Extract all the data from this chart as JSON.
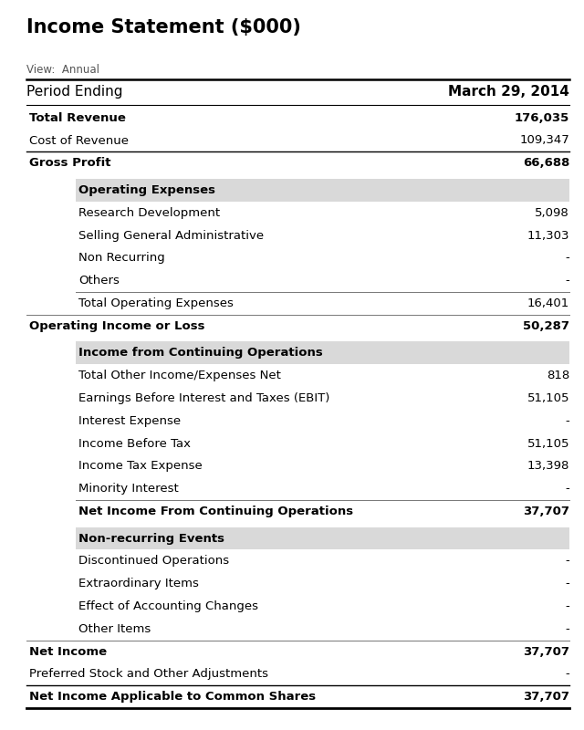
{
  "title": "Income Statement ($000)",
  "view_label": "View:  Annual",
  "period_label": "Period Ending",
  "period_value": "March 29, 2014",
  "bg_color": "#ffffff",
  "header_bg_color": "#d9d9d9",
  "rows": [
    {
      "label": "Total Revenue",
      "value": "176,035",
      "indent": 0,
      "bold": true,
      "section_header": false,
      "header_bg": false,
      "border_top": false,
      "border_bottom": false,
      "gap_after": false
    },
    {
      "label": "Cost of Revenue",
      "value": "109,347",
      "indent": 0,
      "bold": false,
      "section_header": false,
      "header_bg": false,
      "border_top": false,
      "border_bottom": true,
      "gap_after": false
    },
    {
      "label": "Gross Profit",
      "value": "66,688",
      "indent": 0,
      "bold": true,
      "section_header": false,
      "header_bg": false,
      "border_top": false,
      "border_bottom": false,
      "gap_after": true
    },
    {
      "label": "Operating Expenses",
      "value": "",
      "indent": 1,
      "bold": true,
      "section_header": true,
      "header_bg": true,
      "border_top": false,
      "border_bottom": false,
      "gap_after": false
    },
    {
      "label": "Research Development",
      "value": "5,098",
      "indent": 1,
      "bold": false,
      "section_header": false,
      "header_bg": false,
      "border_top": false,
      "border_bottom": false,
      "gap_after": false
    },
    {
      "label": "Selling General Administrative",
      "value": "11,303",
      "indent": 1,
      "bold": false,
      "section_header": false,
      "header_bg": false,
      "border_top": false,
      "border_bottom": false,
      "gap_after": false
    },
    {
      "label": "Non Recurring",
      "value": "-",
      "indent": 1,
      "bold": false,
      "section_header": false,
      "header_bg": false,
      "border_top": false,
      "border_bottom": false,
      "gap_after": false
    },
    {
      "label": "Others",
      "value": "-",
      "indent": 1,
      "bold": false,
      "section_header": false,
      "header_bg": false,
      "border_top": false,
      "border_bottom": false,
      "gap_after": false
    },
    {
      "label": "Total Operating Expenses",
      "value": "16,401",
      "indent": 1,
      "bold": false,
      "section_header": false,
      "header_bg": false,
      "border_top": true,
      "border_bottom": false,
      "gap_after": false
    },
    {
      "label": "Operating Income or Loss",
      "value": "50,287",
      "indent": 0,
      "bold": true,
      "section_header": false,
      "header_bg": false,
      "border_top": true,
      "border_bottom": false,
      "gap_after": true
    },
    {
      "label": "Income from Continuing Operations",
      "value": "",
      "indent": 1,
      "bold": true,
      "section_header": true,
      "header_bg": true,
      "border_top": false,
      "border_bottom": false,
      "gap_after": false
    },
    {
      "label": "Total Other Income/Expenses Net",
      "value": "818",
      "indent": 1,
      "bold": false,
      "section_header": false,
      "header_bg": false,
      "border_top": false,
      "border_bottom": false,
      "gap_after": false
    },
    {
      "label": "Earnings Before Interest and Taxes (EBIT)",
      "value": "51,105",
      "indent": 1,
      "bold": false,
      "section_header": false,
      "header_bg": false,
      "border_top": false,
      "border_bottom": false,
      "gap_after": false
    },
    {
      "label": "Interest Expense",
      "value": "-",
      "indent": 1,
      "bold": false,
      "section_header": false,
      "header_bg": false,
      "border_top": false,
      "border_bottom": false,
      "gap_after": false
    },
    {
      "label": "Income Before Tax",
      "value": "51,105",
      "indent": 1,
      "bold": false,
      "section_header": false,
      "header_bg": false,
      "border_top": false,
      "border_bottom": false,
      "gap_after": false
    },
    {
      "label": "Income Tax Expense",
      "value": "13,398",
      "indent": 1,
      "bold": false,
      "section_header": false,
      "header_bg": false,
      "border_top": false,
      "border_bottom": false,
      "gap_after": false
    },
    {
      "label": "Minority Interest",
      "value": "-",
      "indent": 1,
      "bold": false,
      "section_header": false,
      "header_bg": false,
      "border_top": false,
      "border_bottom": false,
      "gap_after": false
    },
    {
      "label": "Net Income From Continuing Operations",
      "value": "37,707",
      "indent": 1,
      "bold": true,
      "section_header": false,
      "header_bg": false,
      "border_top": true,
      "border_bottom": false,
      "gap_after": true
    },
    {
      "label": "Non-recurring Events",
      "value": "",
      "indent": 1,
      "bold": true,
      "section_header": true,
      "header_bg": true,
      "border_top": false,
      "border_bottom": false,
      "gap_after": false
    },
    {
      "label": "Discontinued Operations",
      "value": "-",
      "indent": 1,
      "bold": false,
      "section_header": false,
      "header_bg": false,
      "border_top": false,
      "border_bottom": false,
      "gap_after": false
    },
    {
      "label": "Extraordinary Items",
      "value": "-",
      "indent": 1,
      "bold": false,
      "section_header": false,
      "header_bg": false,
      "border_top": false,
      "border_bottom": false,
      "gap_after": false
    },
    {
      "label": "Effect of Accounting Changes",
      "value": "-",
      "indent": 1,
      "bold": false,
      "section_header": false,
      "header_bg": false,
      "border_top": false,
      "border_bottom": false,
      "gap_after": false
    },
    {
      "label": "Other Items",
      "value": "-",
      "indent": 1,
      "bold": false,
      "section_header": false,
      "header_bg": false,
      "border_top": false,
      "border_bottom": false,
      "gap_after": false
    },
    {
      "label": "Net Income",
      "value": "37,707",
      "indent": 0,
      "bold": true,
      "section_header": false,
      "header_bg": false,
      "border_top": true,
      "border_bottom": false,
      "gap_after": false
    },
    {
      "label": "Preferred Stock and Other Adjustments",
      "value": "-",
      "indent": 0,
      "bold": false,
      "section_header": false,
      "header_bg": false,
      "border_top": false,
      "border_bottom": true,
      "gap_after": false
    },
    {
      "label": "Net Income Applicable to Common Shares",
      "value": "37,707",
      "indent": 0,
      "bold": true,
      "section_header": false,
      "header_bg": false,
      "border_top": false,
      "border_bottom": false,
      "gap_after": false
    }
  ]
}
